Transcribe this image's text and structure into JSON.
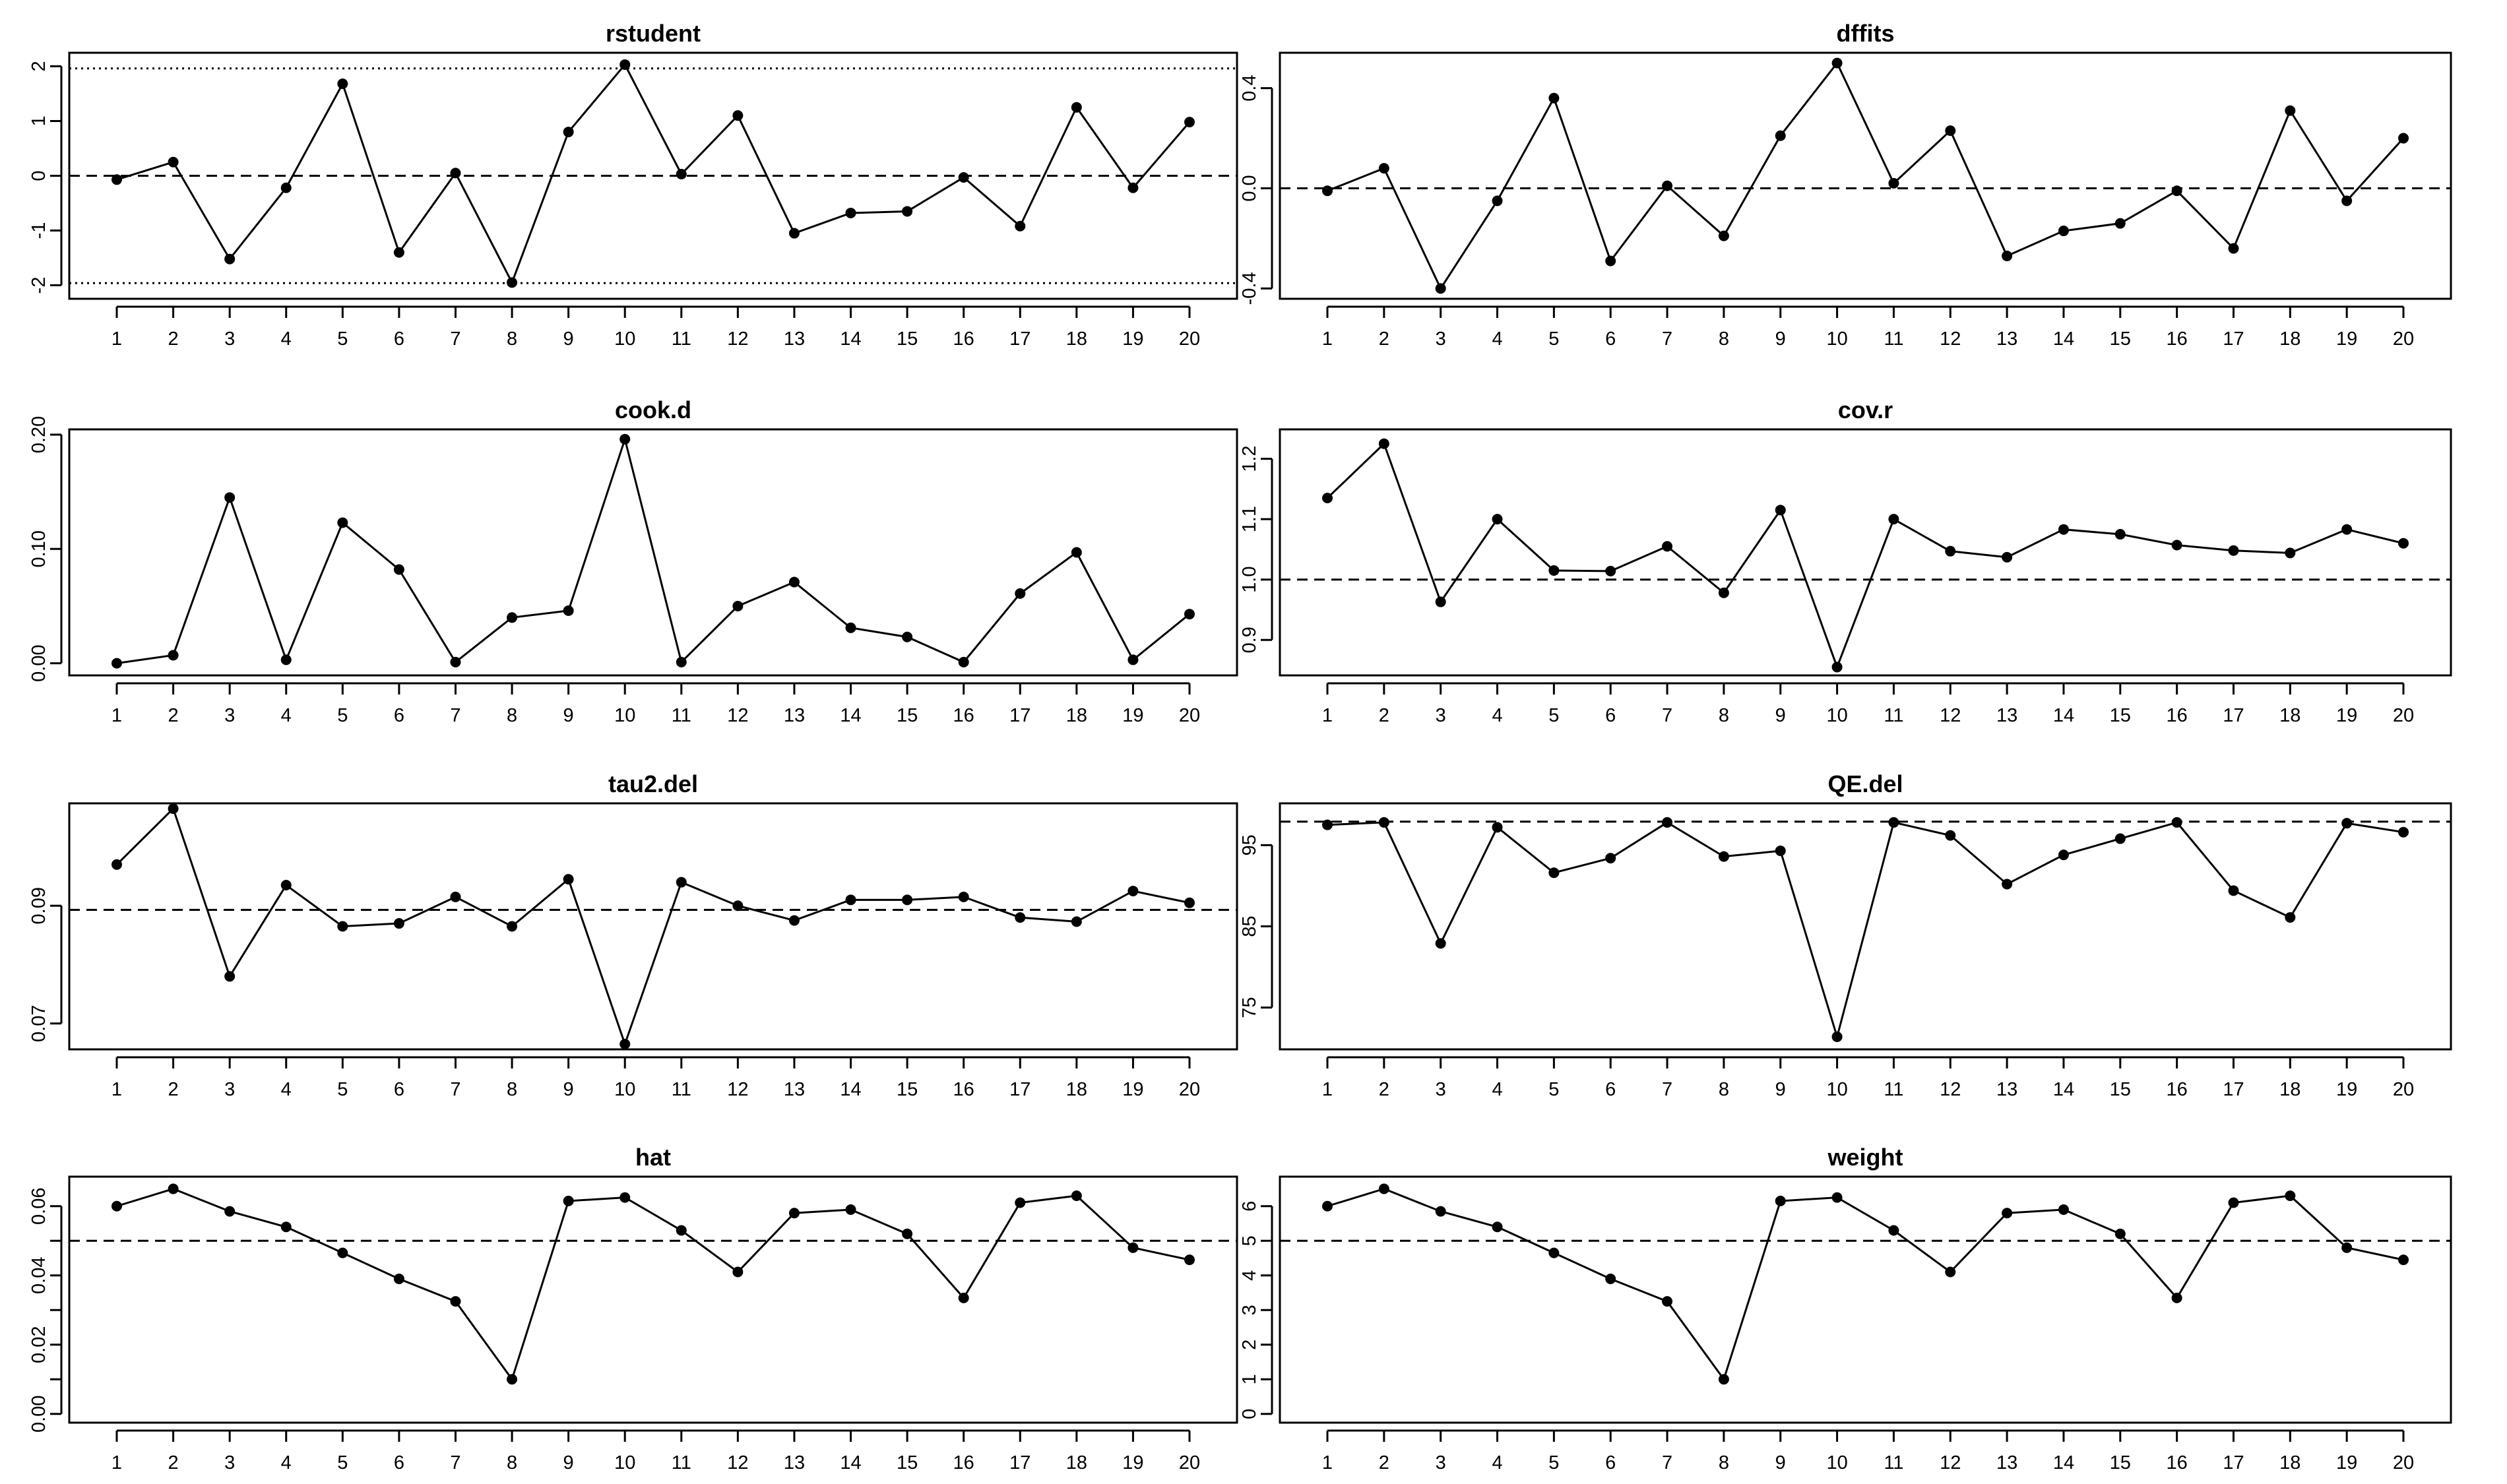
{
  "figure_title": "",
  "chart_data": [
    {
      "type": "line",
      "title": "rstudent",
      "xlabel": "",
      "ylabel": "",
      "x": [
        1,
        2,
        3,
        4,
        5,
        6,
        7,
        8,
        9,
        10,
        11,
        12,
        13,
        14,
        15,
        16,
        17,
        18,
        19,
        20
      ],
      "values": [
        -0.07,
        0.25,
        -1.52,
        -0.22,
        1.68,
        -1.4,
        0.05,
        -1.95,
        0.8,
        2.03,
        0.03,
        1.1,
        -1.05,
        -0.68,
        -0.65,
        -0.03,
        -0.92,
        1.25,
        -0.22,
        0.98
      ],
      "ylim": [
        -2.15,
        2.15
      ],
      "yticks": [
        -2,
        -1,
        0,
        1,
        2
      ],
      "yticklabels": [
        "-2",
        "-1",
        "0",
        "1",
        "2"
      ],
      "ref_lines": [
        {
          "y": 0,
          "style": "dashed"
        },
        {
          "y": 1.96,
          "style": "dotted"
        },
        {
          "y": -1.96,
          "style": "dotted"
        }
      ]
    },
    {
      "type": "line",
      "title": "dffits",
      "xlabel": "",
      "ylabel": "",
      "x": [
        1,
        2,
        3,
        4,
        5,
        6,
        7,
        8,
        9,
        10,
        11,
        12,
        13,
        14,
        15,
        16,
        17,
        18,
        19,
        20
      ],
      "values": [
        -0.01,
        0.08,
        -0.4,
        -0.05,
        0.36,
        -0.29,
        0.01,
        -0.19,
        0.21,
        0.5,
        0.02,
        0.23,
        -0.27,
        -0.17,
        -0.14,
        -0.01,
        -0.24,
        0.31,
        -0.05,
        0.2
      ],
      "ylim": [
        -0.42,
        0.52
      ],
      "yticks": [
        -0.4,
        0,
        0.4
      ],
      "yticklabels": [
        "-0.4",
        "0.0",
        "0.4"
      ],
      "ref_lines": [
        {
          "y": 0,
          "style": "dashed"
        }
      ]
    },
    {
      "type": "line",
      "title": "cook.d",
      "xlabel": "",
      "ylabel": "",
      "x": [
        1,
        2,
        3,
        4,
        5,
        6,
        7,
        8,
        9,
        10,
        11,
        12,
        13,
        14,
        15,
        16,
        17,
        18,
        19,
        20
      ],
      "values": [
        0.0,
        0.007,
        0.145,
        0.003,
        0.123,
        0.082,
        0.001,
        0.04,
        0.046,
        0.196,
        0.001,
        0.05,
        0.071,
        0.031,
        0.023,
        0.001,
        0.061,
        0.097,
        0.003,
        0.043
      ],
      "ylim": [
        -0.006,
        0.2
      ],
      "yticks": [
        0,
        0.1,
        0.2
      ],
      "yticklabels": [
        "0.00",
        "0.10",
        "0.20"
      ],
      "ref_lines": []
    },
    {
      "type": "line",
      "title": "cov.r",
      "xlabel": "",
      "ylabel": "",
      "x": [
        1,
        2,
        3,
        4,
        5,
        6,
        7,
        8,
        9,
        10,
        11,
        12,
        13,
        14,
        15,
        16,
        17,
        18,
        19,
        20
      ],
      "values": [
        1.135,
        1.225,
        0.963,
        1.1,
        1.015,
        1.014,
        1.055,
        0.978,
        1.115,
        0.855,
        1.1,
        1.047,
        1.037,
        1.083,
        1.075,
        1.057,
        1.048,
        1.044,
        1.083,
        1.06
      ],
      "ylim": [
        0.85,
        1.24
      ],
      "yticks": [
        0.9,
        1.0,
        1.1,
        1.2
      ],
      "yticklabels": [
        "0.9",
        "1.0",
        "1.1",
        "1.2"
      ],
      "ref_lines": [
        {
          "y": 1,
          "style": "dashed"
        }
      ]
    },
    {
      "type": "line",
      "title": "tau2.del",
      "xlabel": "",
      "ylabel": "",
      "x": [
        1,
        2,
        3,
        4,
        5,
        6,
        7,
        8,
        9,
        10,
        11,
        12,
        13,
        14,
        15,
        16,
        17,
        18,
        19,
        20
      ],
      "values": [
        0.097,
        0.1065,
        0.078,
        0.0935,
        0.0865,
        0.087,
        0.0915,
        0.0865,
        0.0945,
        0.0665,
        0.094,
        0.09,
        0.0875,
        0.091,
        0.091,
        0.0915,
        0.088,
        0.0873,
        0.0925,
        0.0905
      ],
      "ylim": [
        0.0665,
        0.1065
      ],
      "yticks": [
        0.07,
        0.09
      ],
      "yticklabels": [
        "0.07",
        "0.09"
      ],
      "ref_lines": [
        {
          "y": 0.0893,
          "style": "dashed"
        }
      ]
    },
    {
      "type": "line",
      "title": "QE.del",
      "xlabel": "",
      "ylabel": "",
      "x": [
        1,
        2,
        3,
        4,
        5,
        6,
        7,
        8,
        9,
        10,
        11,
        12,
        13,
        14,
        15,
        16,
        17,
        18,
        19,
        20
      ],
      "values": [
        97.5,
        97.8,
        82.9,
        97.2,
        91.6,
        93.4,
        97.8,
        93.6,
        94.3,
        71.4,
        97.8,
        96.2,
        90.2,
        93.8,
        95.8,
        97.8,
        89.4,
        86.1,
        97.7,
        96.6
      ],
      "ylim": [
        70.5,
        99.5
      ],
      "yticks": [
        75,
        85,
        95
      ],
      "yticklabels": [
        "75",
        "85",
        "95"
      ],
      "ref_lines": [
        {
          "y": 97.9,
          "style": "dashed"
        }
      ]
    },
    {
      "type": "line",
      "title": "hat",
      "xlabel": "",
      "ylabel": "",
      "x": [
        1,
        2,
        3,
        4,
        5,
        6,
        7,
        8,
        9,
        10,
        11,
        12,
        13,
        14,
        15,
        16,
        17,
        18,
        19,
        20
      ],
      "values": [
        0.06,
        0.065,
        0.0585,
        0.054,
        0.0465,
        0.039,
        0.0325,
        0.01,
        0.0615,
        0.0625,
        0.053,
        0.041,
        0.058,
        0.059,
        0.052,
        0.0335,
        0.061,
        0.063,
        0.048,
        0.0445
      ],
      "ylim": [
        -0.001,
        0.067
      ],
      "yticks": [
        0,
        0.01,
        0.02,
        0.03,
        0.04,
        0.05,
        0.06
      ],
      "yticklabels": [
        "0.00",
        "",
        "0.02",
        "",
        "0.04",
        "",
        "0.06"
      ],
      "ref_lines": [
        {
          "y": 0.05,
          "style": "dashed"
        }
      ]
    },
    {
      "type": "line",
      "title": "weight",
      "xlabel": "",
      "ylabel": "",
      "x": [
        1,
        2,
        3,
        4,
        5,
        6,
        7,
        8,
        9,
        10,
        11,
        12,
        13,
        14,
        15,
        16,
        17,
        18,
        19,
        20
      ],
      "values": [
        6.0,
        6.5,
        5.85,
        5.4,
        4.65,
        3.9,
        3.25,
        1.0,
        6.15,
        6.25,
        5.3,
        4.1,
        5.8,
        5.9,
        5.2,
        3.35,
        6.1,
        6.3,
        4.8,
        4.45
      ],
      "ylim": [
        -0.1,
        6.7
      ],
      "yticks": [
        0,
        1,
        2,
        3,
        4,
        5,
        6
      ],
      "yticklabels": [
        "0",
        "1",
        "2",
        "3",
        "4",
        "5",
        "6"
      ],
      "ref_lines": [
        {
          "y": 5,
          "style": "dashed"
        }
      ]
    }
  ]
}
